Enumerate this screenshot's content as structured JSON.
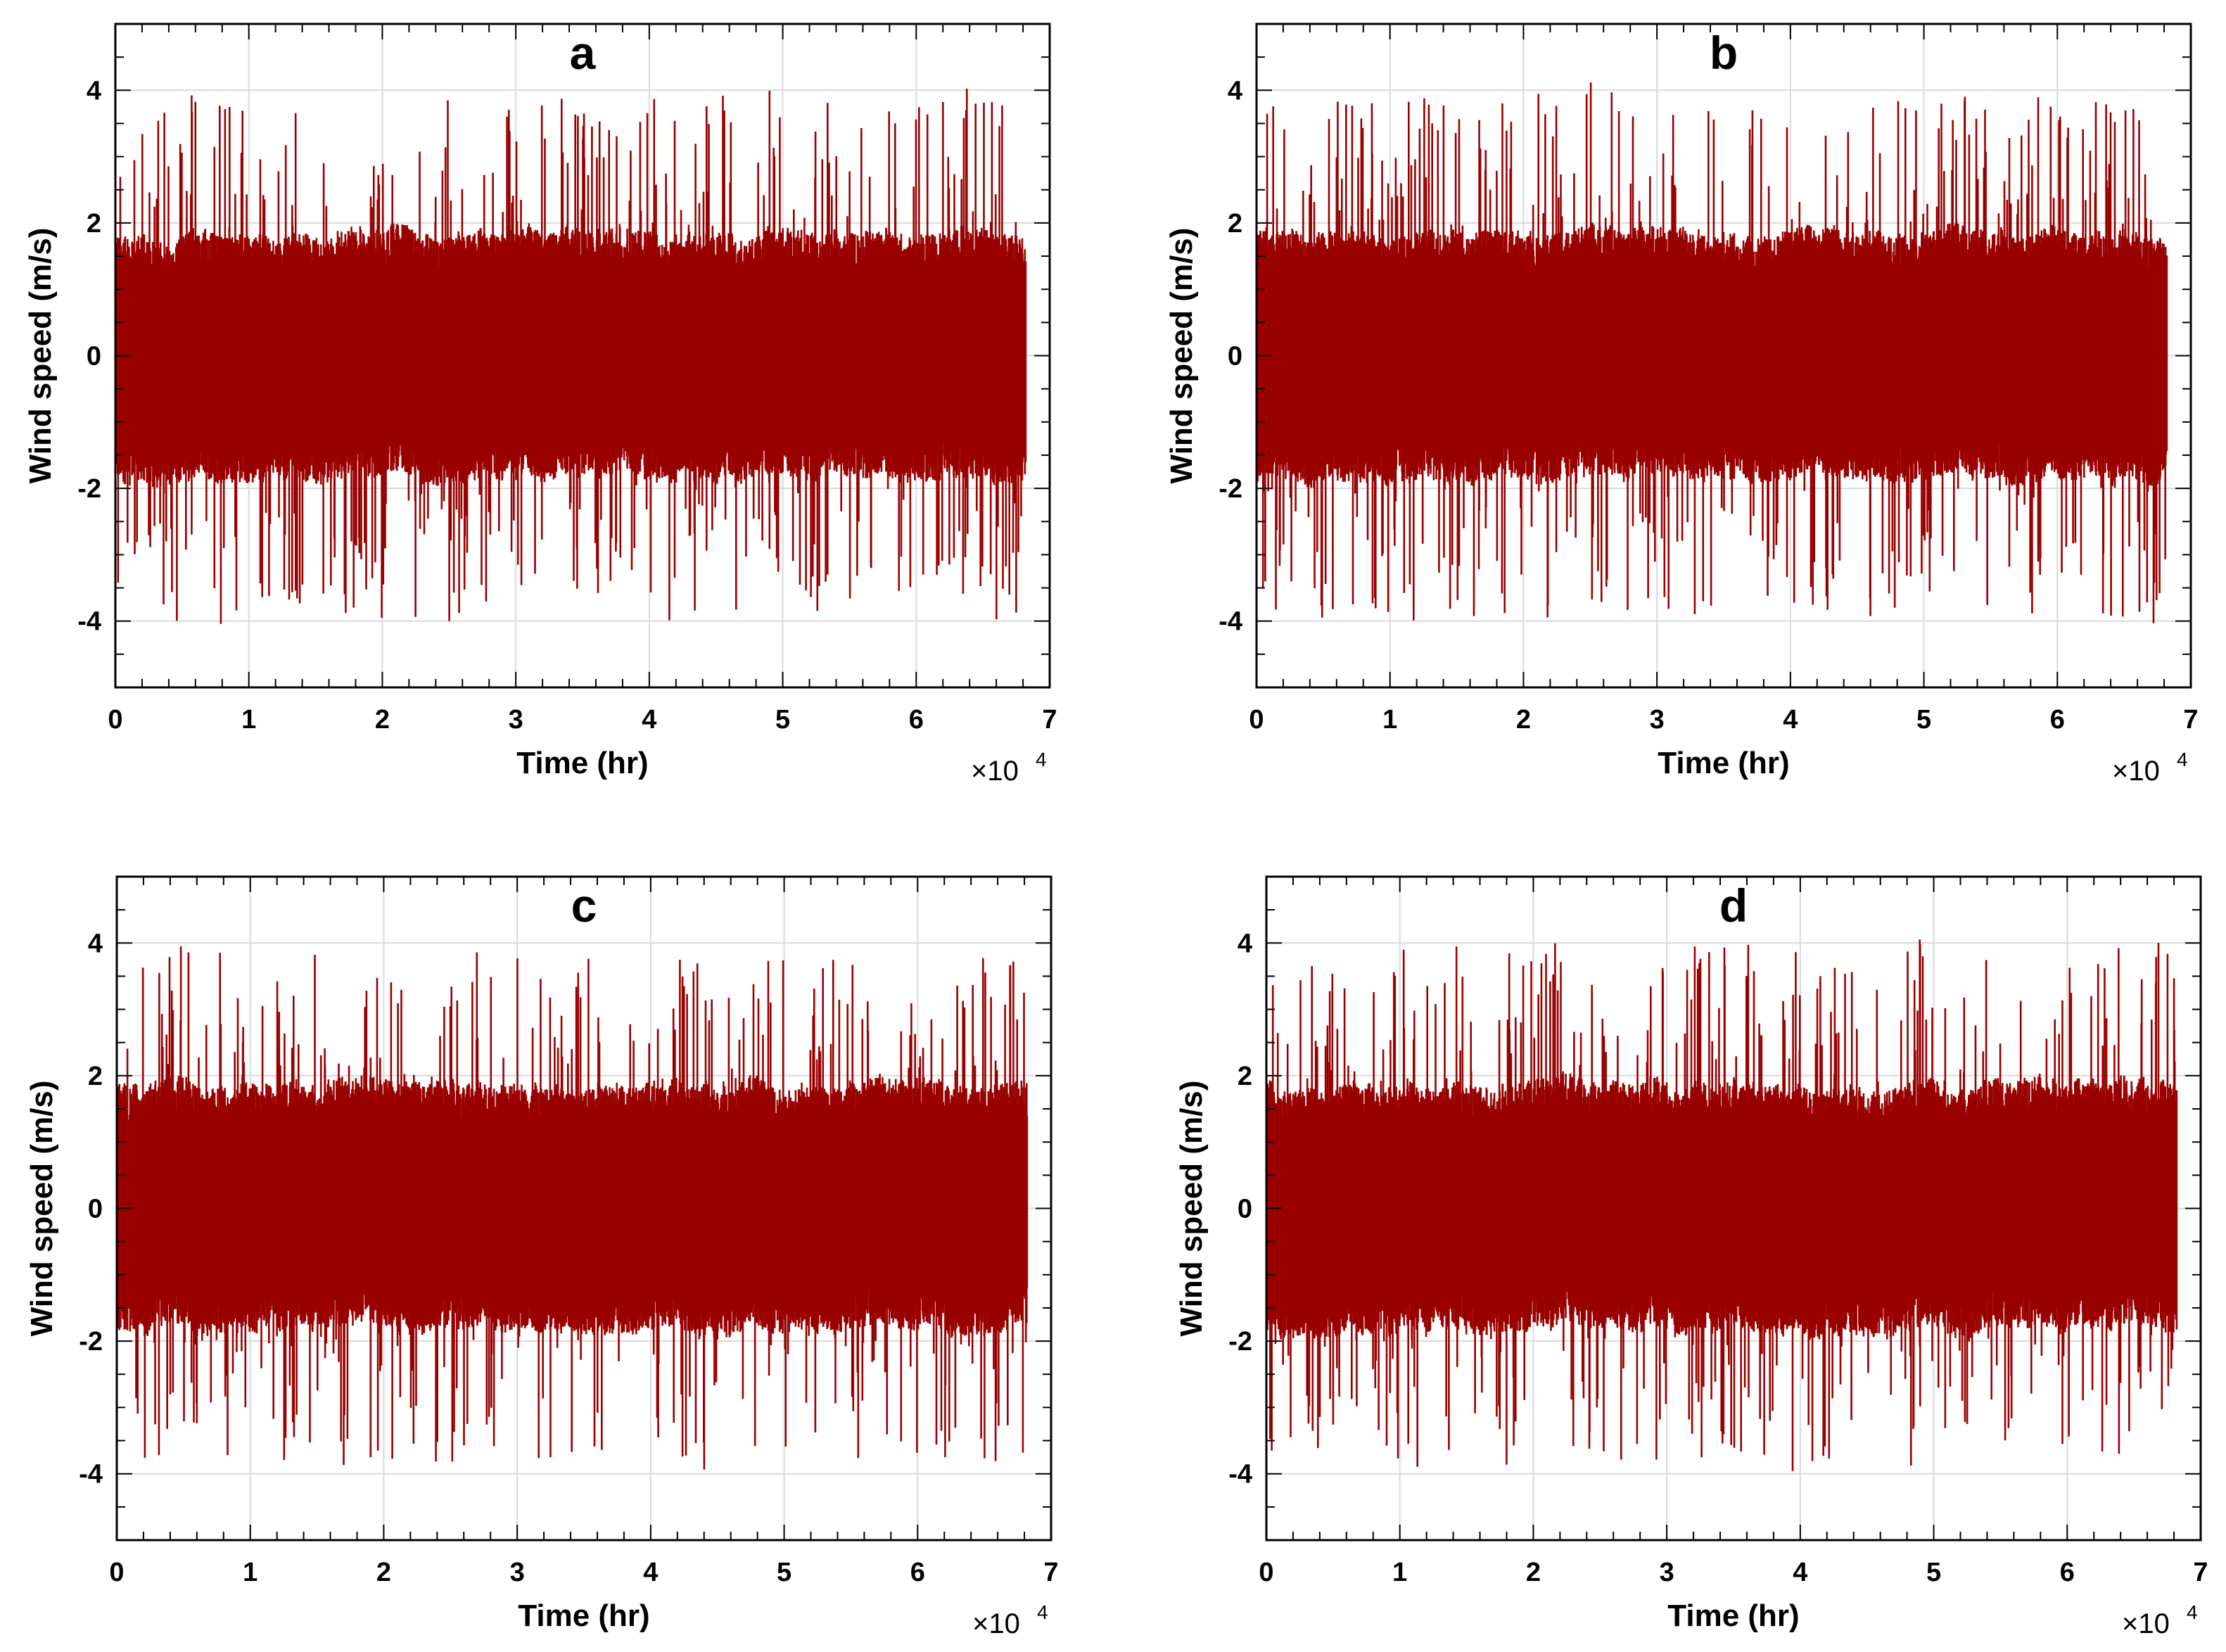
{
  "chart_data": [
    {
      "type": "line",
      "title": "a",
      "xlabel": "Time (hr)",
      "ylabel": "Wind speed (m/s)",
      "x_multiplier": "×10",
      "x_multiplier_exp": "4",
      "xlim": [
        0,
        7
      ],
      "ylim": [
        -5,
        5
      ],
      "xticks": [
        0,
        1,
        2,
        3,
        4,
        5,
        6,
        7
      ],
      "yticks": [
        -4,
        -2,
        0,
        2,
        4
      ],
      "ytick_labels": [
        "-4",
        "-2",
        "0",
        "2",
        "4"
      ],
      "grid": true,
      "series": [
        {
          "name": "wind speed",
          "color": "#990000",
          "x_range": [
            0,
            6.82
          ],
          "core_amplitude": 1.7,
          "peak_max": 3.95,
          "peak_min": -3.98,
          "seed": 11
        }
      ]
    },
    {
      "type": "line",
      "title": "b",
      "xlabel": "Time (hr)",
      "ylabel": "Wind speed (m/s)",
      "x_multiplier": "×10",
      "x_multiplier_exp": "4",
      "xlim": [
        0,
        7
      ],
      "ylim": [
        -5,
        5
      ],
      "xticks": [
        0,
        1,
        2,
        3,
        4,
        5,
        6,
        7
      ],
      "yticks": [
        -4,
        -2,
        0,
        2,
        4
      ],
      "ytick_labels": [
        "-4",
        "-2",
        "0",
        "2",
        "4"
      ],
      "grid": true,
      "series": [
        {
          "name": "wind speed",
          "color": "#990000",
          "x_range": [
            0,
            6.82
          ],
          "core_amplitude": 1.7,
          "peak_max": 3.98,
          "peak_min": -3.97,
          "seed": 23
        }
      ]
    },
    {
      "type": "line",
      "title": "c",
      "xlabel": "Time (hr)",
      "ylabel": "Wind speed (m/s)",
      "x_multiplier": "×10",
      "x_multiplier_exp": "4",
      "xlim": [
        0,
        7
      ],
      "ylim": [
        -5,
        5
      ],
      "xticks": [
        0,
        1,
        2,
        3,
        4,
        5,
        6,
        7
      ],
      "yticks": [
        -4,
        -2,
        0,
        2,
        4
      ],
      "ytick_labels": [
        "-4",
        "-2",
        "0",
        "2",
        "4"
      ],
      "grid": true,
      "series": [
        {
          "name": "wind speed",
          "color": "#990000",
          "x_range": [
            0,
            6.82
          ],
          "core_amplitude": 1.7,
          "peak_max": 3.85,
          "peak_min": -3.95,
          "seed": 37
        }
      ]
    },
    {
      "type": "line",
      "title": "d",
      "xlabel": "Time (hr)",
      "ylabel": "Wind speed (m/s)",
      "x_multiplier": "×10",
      "x_multiplier_exp": "4",
      "xlim": [
        0,
        7
      ],
      "ylim": [
        -5,
        5
      ],
      "xticks": [
        0,
        1,
        2,
        3,
        4,
        5,
        6,
        7
      ],
      "yticks": [
        -4,
        -2,
        0,
        2,
        4
      ],
      "ytick_labels": [
        "-4",
        "-2",
        "0",
        "2",
        "4"
      ],
      "grid": true,
      "series": [
        {
          "name": "wind speed",
          "color": "#990000",
          "x_range": [
            0,
            6.82
          ],
          "core_amplitude": 1.7,
          "peak_max": 3.95,
          "peak_min": -3.95,
          "seed": 53
        }
      ]
    }
  ]
}
